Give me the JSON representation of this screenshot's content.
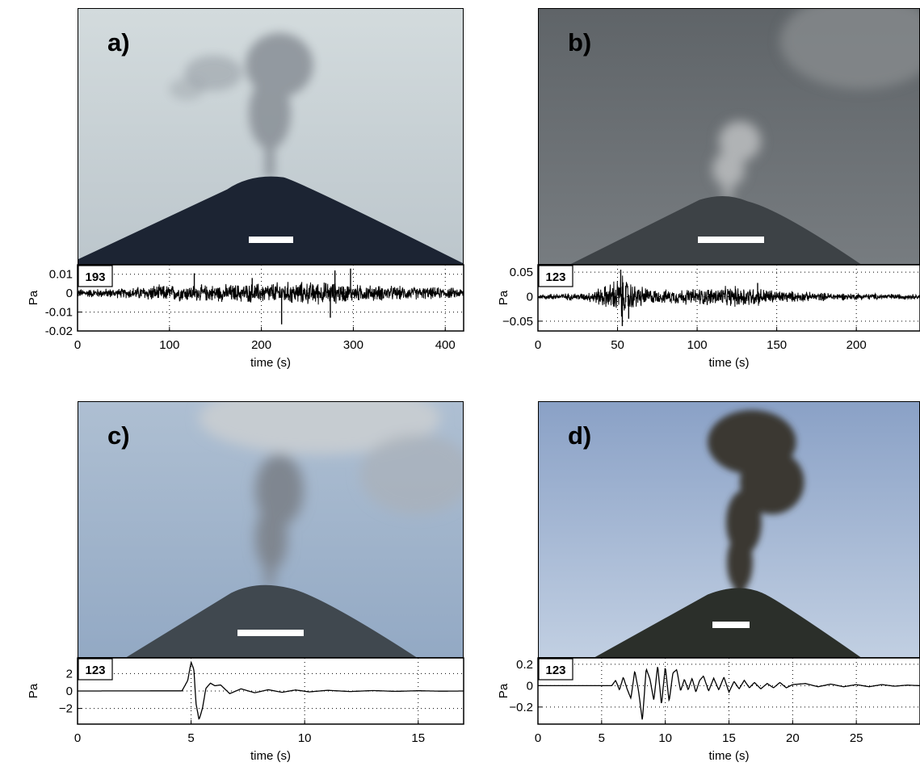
{
  "panels": [
    {
      "label": "a)",
      "station": "193",
      "photo": {
        "sky_top": "#d3dbdd",
        "sky_bottom": "#bcc6cc",
        "mountain": "#1c2433",
        "plume": "#8c939a"
      },
      "chart_data": {
        "type": "line",
        "xlabel": "time (s)",
        "ylabel": "Pa",
        "xlim": [
          0,
          420
        ],
        "ylim": [
          -0.02,
          0.015
        ],
        "xticks": [
          0,
          100,
          200,
          300,
          400
        ],
        "xtick_labels": [
          "0",
          "100",
          "200",
          "300",
          "400"
        ],
        "yticks": [
          0.01,
          0,
          -0.01,
          -0.02
        ],
        "ytick_labels": [
          "0.01",
          "0",
          "-0.01",
          "-0.02"
        ],
        "grid": "dotted",
        "series": [
          {
            "style": "noise",
            "baseline_amp": 0.0017,
            "max_amp": 0.005,
            "x": [
              0,
              50,
              80,
              150,
              200,
              220,
              275,
              300,
              350,
              420
            ],
            "envelope": [
              0.0017,
              0.002,
              0.0032,
              0.0034,
              0.004,
              0.0045,
              0.0045,
              0.0035,
              0.0028,
              0.002
            ],
            "spikes": [
              [
                127,
                0.0105
              ],
              [
                222,
                -0.0165
              ],
              [
                280,
                0.012
              ],
              [
                275,
                -0.013
              ],
              [
                297,
                0.013
              ],
              [
                190,
                0.008
              ]
            ]
          }
        ]
      }
    },
    {
      "label": "b)",
      "station": "123",
      "photo": {
        "sky_top": "#5f6468",
        "sky_bottom": "#777c80",
        "mountain": "#3d4246",
        "plume": "#b0b3b5"
      },
      "chart_data": {
        "type": "line",
        "xlabel": "time (s)",
        "ylabel": "Pa",
        "xlim": [
          0,
          240
        ],
        "ylim": [
          -0.07,
          0.065
        ],
        "xticks": [
          0,
          50,
          100,
          150,
          200
        ],
        "xtick_labels": [
          "0",
          "50",
          "100",
          "150",
          "200"
        ],
        "yticks": [
          0.05,
          0,
          -0.05
        ],
        "ytick_labels": [
          "0.05",
          "0",
          "−0.05"
        ],
        "grid": "dotted",
        "series": [
          {
            "style": "noise",
            "x": [
              0,
              30,
              45,
              52,
              60,
              75,
              100,
              130,
              150,
              170,
              200,
              240
            ],
            "envelope": [
              0.004,
              0.006,
              0.02,
              0.035,
              0.02,
              0.01,
              0.013,
              0.017,
              0.01,
              0.007,
              0.005,
              0.004
            ],
            "spikes": [
              [
                52,
                0.055
              ],
              [
                53,
                -0.06
              ],
              [
                57,
                -0.045
              ],
              [
                138,
                0.028
              ]
            ]
          }
        ]
      }
    },
    {
      "label": "c)",
      "station": "123",
      "photo": {
        "sky_top": "#aebfd2",
        "sky_bottom": "#93a9c4",
        "mountain": "#40484f",
        "plume": "#7f8690"
      },
      "chart_data": {
        "type": "line",
        "xlabel": "time (s)",
        "ylabel": "Pa",
        "xlim": [
          0,
          17
        ],
        "ylim": [
          -3.8,
          3.8
        ],
        "xticks": [
          0,
          5,
          10,
          15
        ],
        "xtick_labels": [
          "0",
          "5",
          "10",
          "15"
        ],
        "yticks": [
          2,
          0,
          -2
        ],
        "ytick_labels": [
          "2",
          "0",
          "−2"
        ],
        "grid": "dotted",
        "series": [
          {
            "style": "line",
            "x": [
              0,
              4.6,
              4.85,
              5.0,
              5.12,
              5.22,
              5.35,
              5.5,
              5.65,
              5.85,
              6.05,
              6.3,
              6.7,
              7.2,
              7.8,
              8.4,
              9.0,
              9.6,
              10.2,
              11.0,
              12.0,
              13.0,
              14.0,
              15.0,
              16.0,
              17.0
            ],
            "y": [
              0,
              0.02,
              1.2,
              3.3,
              2.5,
              -1.5,
              -3.3,
              -2.0,
              0.3,
              0.9,
              0.6,
              0.7,
              -0.3,
              0.25,
              -0.2,
              0.15,
              -0.15,
              0.12,
              -0.1,
              0.08,
              -0.06,
              0.05,
              -0.04,
              0.03,
              -0.02,
              0
            ]
          }
        ]
      }
    },
    {
      "label": "d)",
      "station": "123",
      "photo": {
        "sky_top": "#8aa1c6",
        "sky_bottom": "#c1cfe2",
        "mountain": "#2b2f2a",
        "plume": "#3a3733"
      },
      "chart_data": {
        "type": "line",
        "xlabel": "time (s)",
        "ylabel": "Pa",
        "xlim": [
          0,
          30
        ],
        "ylim": [
          -0.36,
          0.26
        ],
        "xticks": [
          0,
          5,
          10,
          15,
          20,
          25
        ],
        "xtick_labels": [
          "0",
          "5",
          "10",
          "15",
          "20",
          "25"
        ],
        "yticks": [
          0.2,
          0,
          -0.2
        ],
        "ytick_labels": [
          "0.2",
          "0",
          "−0.2"
        ],
        "grid": "dotted",
        "series": [
          {
            "style": "line",
            "x": [
              0,
              5.8,
              6.1,
              6.4,
              6.7,
              7.0,
              7.3,
              7.6,
              7.9,
              8.2,
              8.5,
              8.8,
              9.1,
              9.4,
              9.7,
              10.0,
              10.3,
              10.6,
              10.9,
              11.2,
              11.5,
              11.8,
              12.1,
              12.4,
              12.7,
              13.0,
              13.4,
              13.8,
              14.2,
              14.6,
              15.0,
              15.4,
              15.8,
              16.2,
              16.6,
              17.0,
              17.5,
              18.0,
              18.5,
              19.0,
              19.5,
              20.0,
              21.0,
              22.0,
              23.0,
              24.0,
              25.0,
              26.0,
              27.0,
              28.0,
              29.0,
              30.0
            ],
            "y": [
              0,
              0,
              0.05,
              -0.04,
              0.08,
              -0.03,
              -0.12,
              0.14,
              -0.05,
              -0.33,
              0.16,
              0.06,
              -0.14,
              0.19,
              -0.18,
              0.18,
              -0.15,
              0.12,
              0.15,
              -0.05,
              0.06,
              -0.04,
              0.07,
              -0.06,
              0.05,
              0.09,
              -0.05,
              0.07,
              -0.04,
              0.08,
              -0.06,
              0.04,
              -0.03,
              0.05,
              -0.02,
              0.03,
              -0.03,
              0.02,
              -0.02,
              0.03,
              -0.02,
              0.01,
              0.02,
              -0.01,
              0.015,
              -0.01,
              0.01,
              -0.01,
              0.01,
              -0.005,
              0.005,
              0
            ]
          }
        ]
      }
    }
  ]
}
